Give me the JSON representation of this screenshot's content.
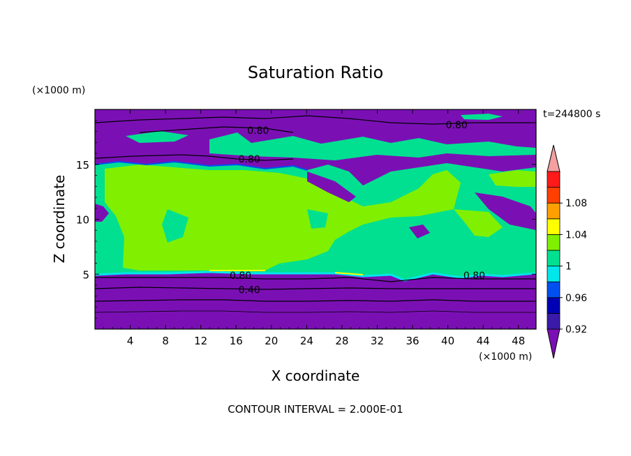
{
  "chart_data": {
    "type": "heatmap",
    "title": "Saturation Ratio",
    "xlabel": "X coordinate",
    "ylabel": "Z coordinate",
    "x_unit": "(×1000 m)",
    "y_unit": "(×1000 m)",
    "xlim": [
      0,
      50
    ],
    "ylim": [
      0,
      20
    ],
    "x_ticks": [
      4,
      8,
      12,
      16,
      20,
      24,
      28,
      32,
      36,
      40,
      44,
      48
    ],
    "y_ticks": [
      5,
      10,
      15
    ],
    "time_label": "t=244800 s",
    "footer": "CONTOUR INTERVAL = 2.000E-01",
    "contour_labels": [
      {
        "text": "0.80",
        "x": 18.5,
        "z": 18.1
      },
      {
        "text": "0.80",
        "x": 41.0,
        "z": 18.6
      },
      {
        "text": "0.80",
        "x": 17.5,
        "z": 15.5
      },
      {
        "text": "0.80",
        "x": 16.5,
        "z": 4.9
      },
      {
        "text": "0.80",
        "x": 43.0,
        "z": 4.9
      },
      {
        "text": "0.40",
        "x": 17.5,
        "z": 3.6
      }
    ],
    "colorbar": {
      "levels": [
        0.92,
        0.94,
        0.96,
        0.98,
        1.0,
        1.02,
        1.04,
        1.06,
        1.08,
        1.1
      ],
      "tick_labels": [
        "0.92",
        "0.96",
        "1",
        "1.04",
        "1.08"
      ],
      "colors": {
        "under": "#7a10b4",
        "bands": [
          "#3a1aa8",
          "#0000b4",
          "#0050f0",
          "#00e6ea",
          "#00e090",
          "#80f000",
          "#ffff00",
          "#ffa000",
          "#ff4000",
          "#ff1a1a"
        ],
        "over": "#f4a0a0"
      }
    },
    "regions": {
      "dry_color": "#7a10b4",
      "moist_color": "#00e090",
      "supersat_color": "#80f000",
      "lower_dry_layer_top_z": 5.0,
      "cloud_top_z": 15.5,
      "upper_dry_band_z": [
        16.8,
        18.6
      ]
    }
  }
}
